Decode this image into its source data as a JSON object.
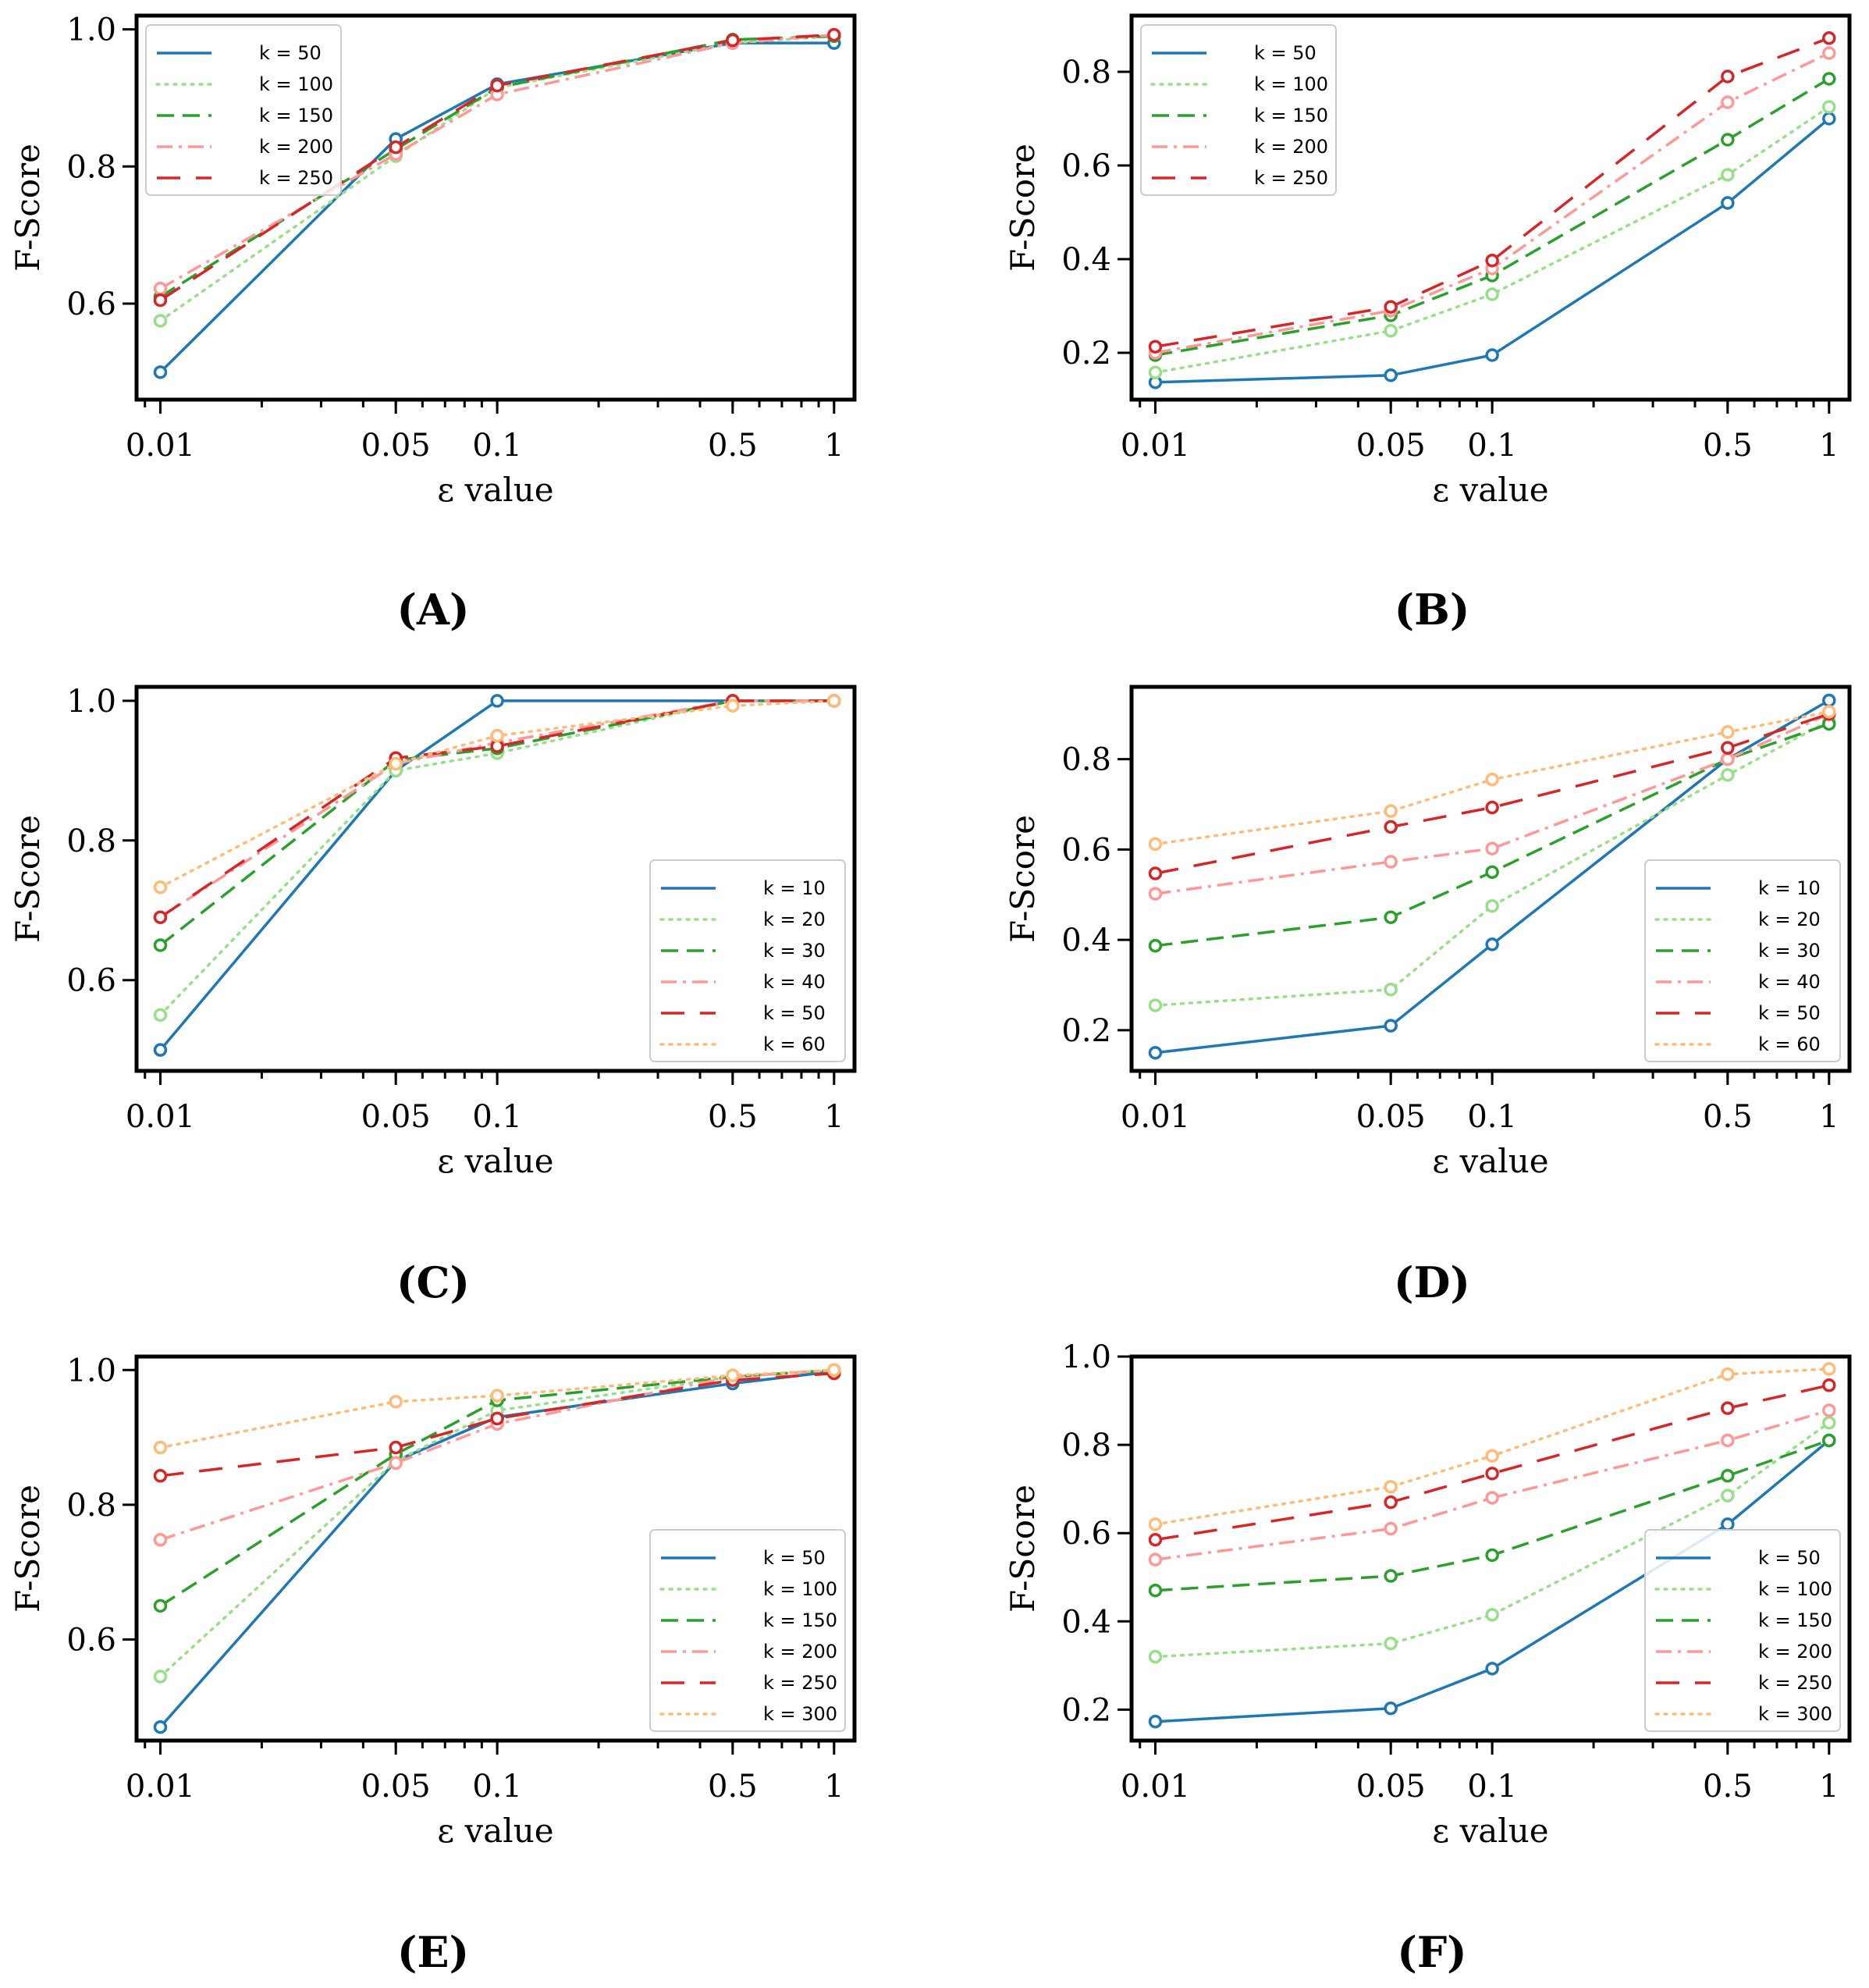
{
  "chart_data": [
    {
      "panel": "(A)",
      "type": "line",
      "xscale": "log",
      "x": [
        0.01,
        0.05,
        0.1,
        0.5,
        1
      ],
      "xtick_labels": [
        "0.01",
        "0.05",
        "0.1",
        "0.5",
        "1"
      ],
      "xlabel": "ε value",
      "ylabel": "F-Score",
      "ylim": [
        0.46,
        1.02
      ],
      "yticks": [
        0.6,
        0.8,
        1.0
      ],
      "ytick_labels": [
        "0.6",
        "0.8",
        "1.0"
      ],
      "legend_position": "top-left",
      "series": [
        {
          "name": "k = 50",
          "color": "#1f77b4",
          "dash": "solid",
          "values": [
            0.5,
            0.84,
            0.92,
            0.98,
            0.98
          ]
        },
        {
          "name": "k = 100",
          "color": "#98df8a",
          "dash": "dotted",
          "values": [
            0.575,
            0.815,
            0.915,
            0.98,
            0.99
          ]
        },
        {
          "name": "k = 150",
          "color": "#2ca02c",
          "dash": "dashed",
          "values": [
            0.61,
            0.825,
            0.915,
            0.985,
            0.99
          ]
        },
        {
          "name": "k = 200",
          "color": "#ff9896",
          "dash": "dashdot",
          "values": [
            0.622,
            0.818,
            0.905,
            0.98,
            0.992
          ]
        },
        {
          "name": "k = 250",
          "color": "#d62728",
          "dash": "longdash",
          "values": [
            0.605,
            0.828,
            0.918,
            0.984,
            0.992
          ]
        }
      ]
    },
    {
      "panel": "(B)",
      "type": "line",
      "xscale": "log",
      "x": [
        0.01,
        0.05,
        0.1,
        0.5,
        1
      ],
      "xtick_labels": [
        "0.01",
        "0.05",
        "0.1",
        "0.5",
        "1"
      ],
      "xlabel": "ε value",
      "ylabel": "F-Score",
      "ylim": [
        0.1,
        0.92
      ],
      "yticks": [
        0.2,
        0.4,
        0.6,
        0.8
      ],
      "ytick_labels": [
        "0.2",
        "0.4",
        "0.6",
        "0.8"
      ],
      "legend_position": "top-left",
      "series": [
        {
          "name": "k = 50",
          "color": "#1f77b4",
          "dash": "solid",
          "values": [
            0.137,
            0.152,
            0.195,
            0.52,
            0.7
          ]
        },
        {
          "name": "k = 100",
          "color": "#98df8a",
          "dash": "dotted",
          "values": [
            0.158,
            0.247,
            0.325,
            0.58,
            0.725
          ]
        },
        {
          "name": "k = 150",
          "color": "#2ca02c",
          "dash": "dashed",
          "values": [
            0.195,
            0.28,
            0.365,
            0.655,
            0.785
          ]
        },
        {
          "name": "k = 200",
          "color": "#ff9896",
          "dash": "dashdot",
          "values": [
            0.2,
            0.29,
            0.38,
            0.735,
            0.84
          ]
        },
        {
          "name": "k = 250",
          "color": "#d62728",
          "dash": "longdash",
          "values": [
            0.213,
            0.298,
            0.397,
            0.79,
            0.872
          ]
        }
      ]
    },
    {
      "panel": "(C)",
      "type": "line",
      "xscale": "log",
      "x": [
        0.01,
        0.05,
        0.1,
        0.5,
        1
      ],
      "xtick_labels": [
        "0.01",
        "0.05",
        "0.1",
        "0.5",
        "1"
      ],
      "xlabel": "ε value",
      "ylabel": "F-Score",
      "ylim": [
        0.47,
        1.02
      ],
      "yticks": [
        0.6,
        0.8,
        1.0
      ],
      "ytick_labels": [
        "0.6",
        "0.8",
        "1.0"
      ],
      "legend_position": "lower-right",
      "series": [
        {
          "name": "k = 10",
          "color": "#1f77b4",
          "dash": "solid",
          "values": [
            0.5,
            0.9,
            1.0,
            1.0,
            1.0
          ]
        },
        {
          "name": "k = 20",
          "color": "#98df8a",
          "dash": "dotted",
          "values": [
            0.55,
            0.9,
            0.925,
            1.0,
            1.0
          ]
        },
        {
          "name": "k = 30",
          "color": "#2ca02c",
          "dash": "dashed",
          "values": [
            0.65,
            0.915,
            0.932,
            1.0,
            1.0
          ]
        },
        {
          "name": "k = 40",
          "color": "#ff9896",
          "dash": "dashdot",
          "values": [
            0.69,
            0.91,
            0.94,
            1.0,
            1.0
          ]
        },
        {
          "name": "k = 50",
          "color": "#d62728",
          "dash": "longdash",
          "values": [
            0.69,
            0.918,
            0.935,
            1.0,
            1.0
          ]
        },
        {
          "name": "k = 60",
          "color": "#ffbb78",
          "dash": "dotted",
          "values": [
            0.733,
            0.91,
            0.95,
            0.993,
            1.0
          ]
        }
      ]
    },
    {
      "panel": "(D)",
      "type": "line",
      "xscale": "log",
      "x": [
        0.01,
        0.05,
        0.1,
        0.5,
        1
      ],
      "xtick_labels": [
        "0.01",
        "0.05",
        "0.1",
        "0.5",
        "1"
      ],
      "xlabel": "ε value",
      "ylabel": "F-Score",
      "ylim": [
        0.11,
        0.96
      ],
      "yticks": [
        0.2,
        0.4,
        0.6,
        0.8
      ],
      "ytick_labels": [
        "0.2",
        "0.4",
        "0.6",
        "0.8"
      ],
      "legend_position": "lower-right",
      "series": [
        {
          "name": "k = 10",
          "color": "#1f77b4",
          "dash": "solid",
          "values": [
            0.15,
            0.21,
            0.39,
            0.8,
            0.93
          ]
        },
        {
          "name": "k = 20",
          "color": "#98df8a",
          "dash": "dotted",
          "values": [
            0.255,
            0.29,
            0.475,
            0.765,
            0.885
          ]
        },
        {
          "name": "k = 30",
          "color": "#2ca02c",
          "dash": "dashed",
          "values": [
            0.387,
            0.45,
            0.55,
            0.8,
            0.878
          ]
        },
        {
          "name": "k = 40",
          "color": "#ff9896",
          "dash": "dashdot",
          "values": [
            0.502,
            0.573,
            0.602,
            0.8,
            0.9
          ]
        },
        {
          "name": "k = 50",
          "color": "#d62728",
          "dash": "longdash",
          "values": [
            0.547,
            0.65,
            0.693,
            0.825,
            0.9
          ]
        },
        {
          "name": "k = 60",
          "color": "#ffbb78",
          "dash": "dotted",
          "values": [
            0.612,
            0.685,
            0.755,
            0.86,
            0.905
          ]
        }
      ]
    },
    {
      "panel": "(E)",
      "type": "line",
      "xscale": "log",
      "x": [
        0.01,
        0.05,
        0.1,
        0.5,
        1
      ],
      "xtick_labels": [
        "0.01",
        "0.05",
        "0.1",
        "0.5",
        "1"
      ],
      "xlabel": "ε value",
      "ylabel": "F-Score",
      "ylim": [
        0.45,
        1.02
      ],
      "yticks": [
        0.6,
        0.8,
        1.0
      ],
      "ytick_labels": [
        "0.6",
        "0.8",
        "1.0"
      ],
      "legend_position": "lower-right",
      "series": [
        {
          "name": "k = 50",
          "color": "#1f77b4",
          "dash": "solid",
          "values": [
            0.47,
            0.865,
            0.93,
            0.98,
            0.998
          ]
        },
        {
          "name": "k = 100",
          "color": "#98df8a",
          "dash": "dotted",
          "values": [
            0.545,
            0.865,
            0.94,
            0.99,
            1.0
          ]
        },
        {
          "name": "k = 150",
          "color": "#2ca02c",
          "dash": "dashed",
          "values": [
            0.65,
            0.875,
            0.955,
            0.99,
            1.0
          ]
        },
        {
          "name": "k = 200",
          "color": "#ff9896",
          "dash": "dashdot",
          "values": [
            0.748,
            0.862,
            0.92,
            0.99,
            1.0
          ]
        },
        {
          "name": "k = 250",
          "color": "#d62728",
          "dash": "longdash",
          "values": [
            0.843,
            0.885,
            0.928,
            0.985,
            0.995
          ]
        },
        {
          "name": "k = 300",
          "color": "#ffbb78",
          "dash": "dotted",
          "values": [
            0.885,
            0.953,
            0.962,
            0.992,
            1.0
          ]
        }
      ]
    },
    {
      "panel": "(F)",
      "type": "line",
      "xscale": "log",
      "x": [
        0.01,
        0.05,
        0.1,
        0.5,
        1
      ],
      "xtick_labels": [
        "0.01",
        "0.05",
        "0.1",
        "0.5",
        "1"
      ],
      "xlabel": "ε value",
      "ylabel": "F-Score",
      "ylim": [
        0.13,
        1.0
      ],
      "yticks": [
        0.2,
        0.4,
        0.6,
        0.8,
        1.0
      ],
      "ytick_labels": [
        "0.2",
        "0.4",
        "0.6",
        "0.8",
        "1.0"
      ],
      "legend_position": "lower-right",
      "series": [
        {
          "name": "k = 50",
          "color": "#1f77b4",
          "dash": "solid",
          "values": [
            0.173,
            0.203,
            0.293,
            0.62,
            0.81
          ]
        },
        {
          "name": "k = 100",
          "color": "#98df8a",
          "dash": "dotted",
          "values": [
            0.32,
            0.35,
            0.415,
            0.685,
            0.85
          ]
        },
        {
          "name": "k = 150",
          "color": "#2ca02c",
          "dash": "dashed",
          "values": [
            0.47,
            0.503,
            0.55,
            0.73,
            0.81
          ]
        },
        {
          "name": "k = 200",
          "color": "#ff9896",
          "dash": "dashdot",
          "values": [
            0.54,
            0.61,
            0.68,
            0.81,
            0.878
          ]
        },
        {
          "name": "k = 250",
          "color": "#d62728",
          "dash": "longdash",
          "values": [
            0.585,
            0.67,
            0.735,
            0.883,
            0.935
          ]
        },
        {
          "name": "k = 300",
          "color": "#ffbb78",
          "dash": "dotted",
          "values": [
            0.62,
            0.705,
            0.775,
            0.96,
            0.972
          ]
        }
      ]
    }
  ]
}
